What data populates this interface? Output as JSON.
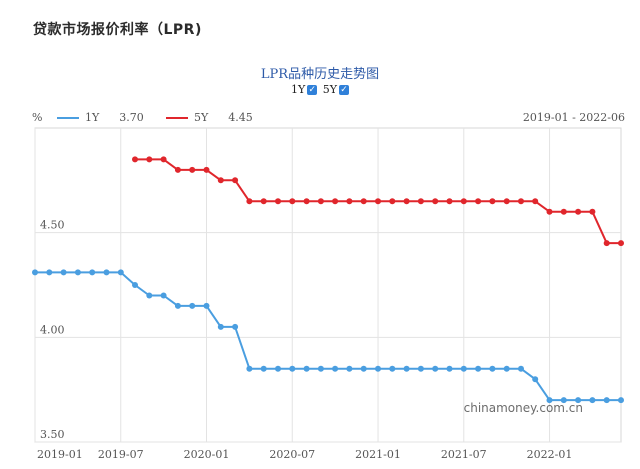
{
  "page": {
    "title": "贷款市场报价利率（LPR)"
  },
  "chart_data": {
    "type": "line",
    "title": "LPR品种历史走势图",
    "toggles": [
      {
        "label": "1Y",
        "checked": true,
        "mark": "✓"
      },
      {
        "label": "5Y",
        "checked": true,
        "mark": "✓"
      }
    ],
    "unit": "%",
    "date_range": "2019-01 - 2022-06",
    "watermark": "chinamoney.com.cn",
    "x_ticks": [
      "2019-01",
      "2019-07",
      "2020-01",
      "2020-07",
      "2021-01",
      "2021-07",
      "2022-01"
    ],
    "y_ticks": [
      "3.50",
      "4.00",
      "4.50"
    ],
    "ylim": [
      3.5,
      5.0
    ],
    "x_range": [
      "2019-01",
      "2022-06"
    ],
    "grid": true,
    "series": [
      {
        "name": "1Y",
        "latest": "3.70",
        "color": "#4a9ee0",
        "x": [
          "2019-01",
          "2019-02",
          "2019-03",
          "2019-04",
          "2019-05",
          "2019-06",
          "2019-07",
          "2019-08",
          "2019-09",
          "2019-10",
          "2019-11",
          "2019-12",
          "2020-01",
          "2020-02",
          "2020-03",
          "2020-04",
          "2020-05",
          "2020-06",
          "2020-07",
          "2020-08",
          "2020-09",
          "2020-10",
          "2020-11",
          "2020-12",
          "2021-01",
          "2021-02",
          "2021-03",
          "2021-04",
          "2021-05",
          "2021-06",
          "2021-07",
          "2021-08",
          "2021-09",
          "2021-10",
          "2021-11",
          "2021-12",
          "2022-01",
          "2022-02",
          "2022-03",
          "2022-04",
          "2022-05",
          "2022-06"
        ],
        "values": [
          4.31,
          4.31,
          4.31,
          4.31,
          4.31,
          4.31,
          4.31,
          4.25,
          4.2,
          4.2,
          4.15,
          4.15,
          4.15,
          4.05,
          4.05,
          3.85,
          3.85,
          3.85,
          3.85,
          3.85,
          3.85,
          3.85,
          3.85,
          3.85,
          3.85,
          3.85,
          3.85,
          3.85,
          3.85,
          3.85,
          3.85,
          3.85,
          3.85,
          3.85,
          3.85,
          3.8,
          3.7,
          3.7,
          3.7,
          3.7,
          3.7,
          3.7
        ]
      },
      {
        "name": "5Y",
        "latest": "4.45",
        "color": "#e0262c",
        "x": [
          "2019-08",
          "2019-09",
          "2019-10",
          "2019-11",
          "2019-12",
          "2020-01",
          "2020-02",
          "2020-03",
          "2020-04",
          "2020-05",
          "2020-06",
          "2020-07",
          "2020-08",
          "2020-09",
          "2020-10",
          "2020-11",
          "2020-12",
          "2021-01",
          "2021-02",
          "2021-03",
          "2021-04",
          "2021-05",
          "2021-06",
          "2021-07",
          "2021-08",
          "2021-09",
          "2021-10",
          "2021-11",
          "2021-12",
          "2022-01",
          "2022-02",
          "2022-03",
          "2022-04",
          "2022-05",
          "2022-06"
        ],
        "values": [
          4.85,
          4.85,
          4.85,
          4.8,
          4.8,
          4.8,
          4.75,
          4.75,
          4.65,
          4.65,
          4.65,
          4.65,
          4.65,
          4.65,
          4.65,
          4.65,
          4.65,
          4.65,
          4.65,
          4.65,
          4.65,
          4.65,
          4.65,
          4.65,
          4.65,
          4.65,
          4.65,
          4.65,
          4.65,
          4.6,
          4.6,
          4.6,
          4.6,
          4.45,
          4.45
        ]
      }
    ]
  }
}
